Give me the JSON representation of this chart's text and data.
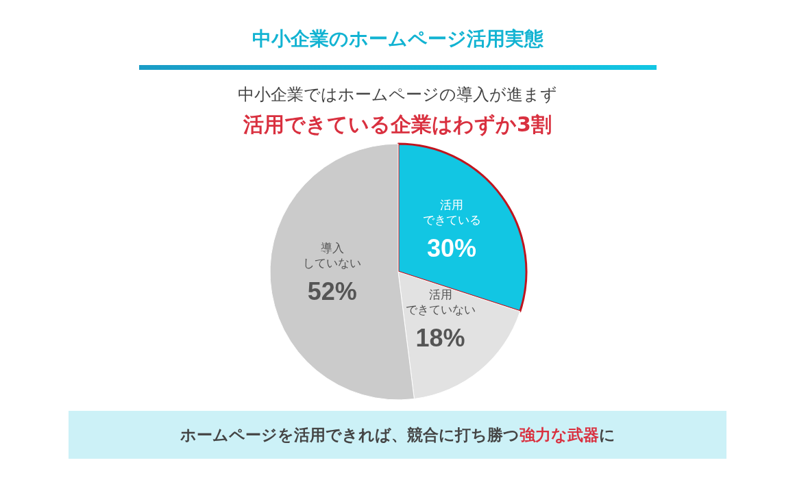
{
  "chart_data": {
    "type": "pie",
    "title": "中小企業のホームページ活用実態",
    "subtitle": "中小企業ではホームページの導入が進まず",
    "categories": [
      "活用できている",
      "活用できていない",
      "導入していない"
    ],
    "values": [
      30,
      18,
      52
    ],
    "value_labels": [
      "30%",
      "18%",
      "52%"
    ],
    "colors": [
      "#12c6e3",
      "#e2e2e2",
      "#cbcbcb"
    ],
    "annotations": [
      "活用できている企業はわずか3割",
      "ホームページを活用できれば、競合に打ち勝つ",
      "強力な武器",
      "に"
    ]
  }
}
